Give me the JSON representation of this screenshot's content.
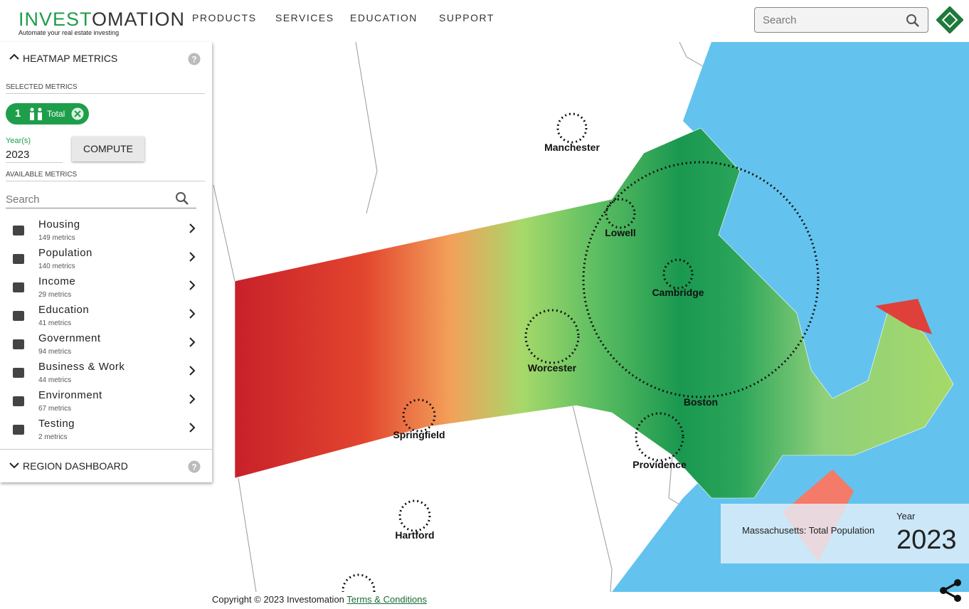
{
  "header": {
    "logo_green": "INVEST",
    "logo_dark": "OMATION",
    "tagline": "Automate your real estate investing",
    "nav": [
      "PRODUCTS",
      "SERVICES",
      "EDUCATION",
      "SUPPORT"
    ],
    "search_placeholder": "Search"
  },
  "sidebar": {
    "heatmap_title": "HEATMAP METRICS",
    "selected_label": "SELECTED METRICS",
    "chip": {
      "count": 1,
      "label": "Total"
    },
    "year_label": "Year(s)",
    "year_value": "2023",
    "compute": "COMPUTE",
    "available_label": "AVAILABLE METRICS",
    "search_placeholder": "Search",
    "categories": [
      {
        "name": "Housing",
        "count": "149 metrics"
      },
      {
        "name": "Population",
        "count": "140 metrics"
      },
      {
        "name": "Income",
        "count": "29 metrics"
      },
      {
        "name": "Education",
        "count": "41 metrics"
      },
      {
        "name": "Government",
        "count": "94 metrics"
      },
      {
        "name": "Business & Work",
        "count": "44 metrics"
      },
      {
        "name": "Environment",
        "count": "67 metrics"
      },
      {
        "name": "Testing",
        "count": "2 metrics"
      }
    ],
    "region_title": "REGION DASHBOARD"
  },
  "map": {
    "cities": [
      "Manchester",
      "Lowell",
      "Cambridge",
      "Worcester",
      "Boston",
      "Springfield",
      "Providence",
      "Hartford"
    ],
    "legend_title": "Massachusetts: Total Population",
    "year_label": "Year",
    "year": "2023"
  },
  "footer": {
    "copyright": "Copyright © 2023 Investomation",
    "link": "Terms & Conditions"
  }
}
